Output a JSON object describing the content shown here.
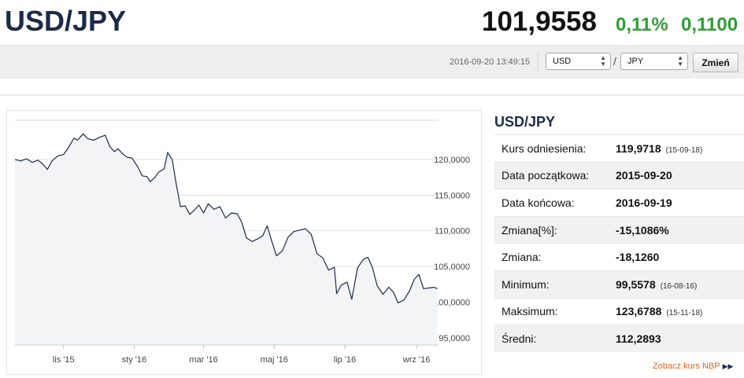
{
  "header": {
    "pair": "USD/JPY",
    "rate": "101,9558",
    "change_pct": "0,11%",
    "change_abs": "0,1100"
  },
  "toolbar": {
    "timestamp": "2016-09-20 13:49:15",
    "base_currency": "USD",
    "separator": "/",
    "quote_currency": "JPY",
    "change_button": "Zmień"
  },
  "panel": {
    "title": "USD/JPY",
    "rows": [
      {
        "label": "Kurs odniesienia:",
        "value": "119,9718",
        "date": "(15-09-18)"
      },
      {
        "label": "Data początkowa:",
        "value": "2015-09-20",
        "date": ""
      },
      {
        "label": "Data końcowa:",
        "value": "2016-09-19",
        "date": ""
      },
      {
        "label": "Zmiana[%]:",
        "value": "-15,1086%",
        "date": ""
      },
      {
        "label": "Zmiana:",
        "value": "-18,1260",
        "date": ""
      },
      {
        "label": "Minimum:",
        "value": "99,5578",
        "date": "(16-08-16)"
      },
      {
        "label": "Maksimum:",
        "value": "123,6788",
        "date": "(15-11-18)"
      },
      {
        "label": "Średni:",
        "value": "112,2893",
        "date": ""
      }
    ],
    "nbp_link": "Zobacz kurs NBP"
  },
  "colors": {
    "title": "#1c2a4a",
    "positive": "#2f9e34",
    "link": "#e0661b",
    "line": "#1c2a4a",
    "area": "#f3f4f6"
  },
  "chart_data": {
    "type": "line",
    "title": "",
    "xlabel": "",
    "ylabel": "",
    "y_tick_labels": [
      "95,0000",
      "100,0000",
      "105,0000",
      "110,0000",
      "115,0000",
      "120,0000"
    ],
    "y_tick_values": [
      95,
      100,
      105,
      110,
      115,
      120
    ],
    "ylim": [
      94,
      125.5
    ],
    "x_tick_labels": [
      "lis '15",
      "sty '16",
      "mar '16",
      "maj '16",
      "lip '16",
      "wrz '16"
    ],
    "x_tick_values": [
      "2015-11-01",
      "2016-01-01",
      "2016-03-01",
      "2016-05-01",
      "2016-07-01",
      "2016-09-01"
    ],
    "xlim": [
      "2015-09-20",
      "2016-09-20"
    ],
    "grid": true,
    "legend": "none",
    "series": [
      {
        "x": [
          "2015-09-20",
          "2015-09-25",
          "2015-09-30",
          "2015-10-05",
          "2015-10-10",
          "2015-10-15",
          "2015-10-18",
          "2015-10-22",
          "2015-10-27",
          "2015-11-01",
          "2015-11-05",
          "2015-11-10",
          "2015-11-13",
          "2015-11-18",
          "2015-11-22",
          "2015-11-27",
          "2015-12-02",
          "2015-12-07",
          "2015-12-11",
          "2015-12-15",
          "2015-12-18",
          "2015-12-22",
          "2015-12-26",
          "2015-12-30",
          "2016-01-04",
          "2016-01-08",
          "2016-01-12",
          "2016-01-15",
          "2016-01-19",
          "2016-01-22",
          "2016-01-27",
          "2016-01-30",
          "2016-02-03",
          "2016-02-06",
          "2016-02-10",
          "2016-02-14",
          "2016-02-18",
          "2016-02-22",
          "2016-02-26",
          "2016-03-01",
          "2016-03-05",
          "2016-03-10",
          "2016-03-15",
          "2016-03-20",
          "2016-03-25",
          "2016-03-30",
          "2016-04-03",
          "2016-04-07",
          "2016-04-12",
          "2016-04-17",
          "2016-04-21",
          "2016-04-25",
          "2016-04-29",
          "2016-05-03",
          "2016-05-08",
          "2016-05-13",
          "2016-05-18",
          "2016-05-23",
          "2016-05-28",
          "2016-06-02",
          "2016-06-07",
          "2016-06-12",
          "2016-06-17",
          "2016-06-22",
          "2016-06-24",
          "2016-06-28",
          "2016-07-03",
          "2016-07-07",
          "2016-07-12",
          "2016-07-17",
          "2016-07-21",
          "2016-07-25",
          "2016-07-29",
          "2016-08-03",
          "2016-08-08",
          "2016-08-12",
          "2016-08-16",
          "2016-08-21",
          "2016-08-26",
          "2016-08-30",
          "2016-09-03",
          "2016-09-07",
          "2016-09-12",
          "2016-09-16",
          "2016-09-19"
        ],
        "values": [
          120.0,
          119.8,
          120.1,
          119.6,
          119.9,
          119.2,
          118.6,
          119.8,
          120.5,
          120.7,
          121.6,
          123.0,
          122.7,
          123.6,
          122.9,
          122.7,
          123.1,
          123.4,
          121.8,
          121.1,
          121.5,
          120.8,
          120.3,
          120.2,
          119.0,
          117.7,
          117.6,
          116.9,
          117.5,
          118.2,
          118.7,
          121.0,
          119.9,
          116.9,
          113.4,
          113.5,
          112.3,
          112.9,
          113.6,
          112.5,
          113.8,
          113.0,
          113.4,
          111.8,
          112.5,
          112.4,
          111.2,
          109.0,
          108.5,
          108.9,
          109.3,
          110.7,
          108.5,
          106.5,
          107.2,
          109.1,
          109.9,
          110.1,
          110.3,
          109.5,
          106.8,
          106.2,
          104.5,
          104.9,
          101.2,
          102.4,
          102.8,
          100.4,
          104.8,
          106.0,
          106.3,
          104.8,
          102.3,
          101.1,
          102.1,
          101.4,
          99.9,
          100.3,
          101.6,
          103.2,
          103.9,
          101.9,
          102.0,
          102.1,
          101.9
        ]
      }
    ]
  }
}
